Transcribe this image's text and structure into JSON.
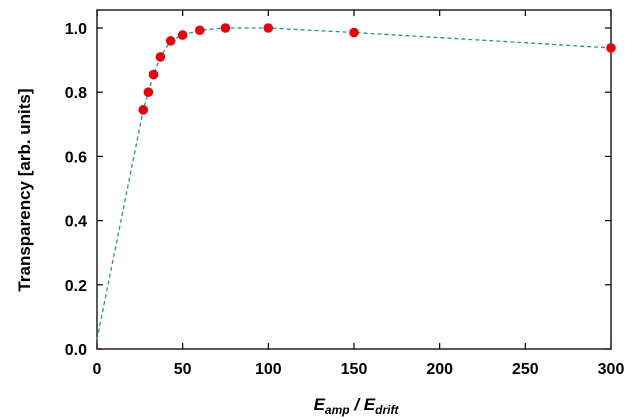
{
  "chart_data": {
    "type": "scatter",
    "xlabel_main": "E",
    "xlabel_sub_a": "amp",
    "xlabel_sep": " / E",
    "xlabel_sub_b": "drift",
    "ylabel": "Transparency [arb. units]",
    "xlim": [
      0,
      300
    ],
    "ylim": [
      0,
      1.05
    ],
    "x_ticks": [
      0,
      50,
      100,
      150,
      200,
      250,
      300
    ],
    "x_tick_labels": [
      "0",
      "50",
      "100",
      "150",
      "200",
      "250",
      "300"
    ],
    "y_ticks": [
      0,
      0.2,
      0.4,
      0.6,
      0.8,
      1.0
    ],
    "y_tick_labels": [
      "0.0",
      "0.2",
      "0.4",
      "0.6",
      "0.8",
      "1.0"
    ],
    "grid": false,
    "legend": "none",
    "series": [
      {
        "kind": "points",
        "color": "#e8000b",
        "x": [
          27,
          30,
          33,
          37,
          43,
          50,
          60,
          75,
          100,
          150,
          300
        ],
        "y": [
          0.745,
          0.8,
          0.855,
          0.91,
          0.96,
          0.978,
          0.993,
          1.0,
          1.0,
          0.986,
          0.938
        ]
      },
      {
        "kind": "dashed-line",
        "color": "#1b9a8a",
        "x": [
          0,
          27,
          30,
          33,
          37,
          43,
          50,
          60,
          75,
          100,
          150,
          300
        ],
        "y": [
          0.03,
          0.745,
          0.8,
          0.855,
          0.91,
          0.96,
          0.978,
          0.993,
          1.0,
          1.0,
          0.986,
          0.938
        ]
      }
    ]
  }
}
